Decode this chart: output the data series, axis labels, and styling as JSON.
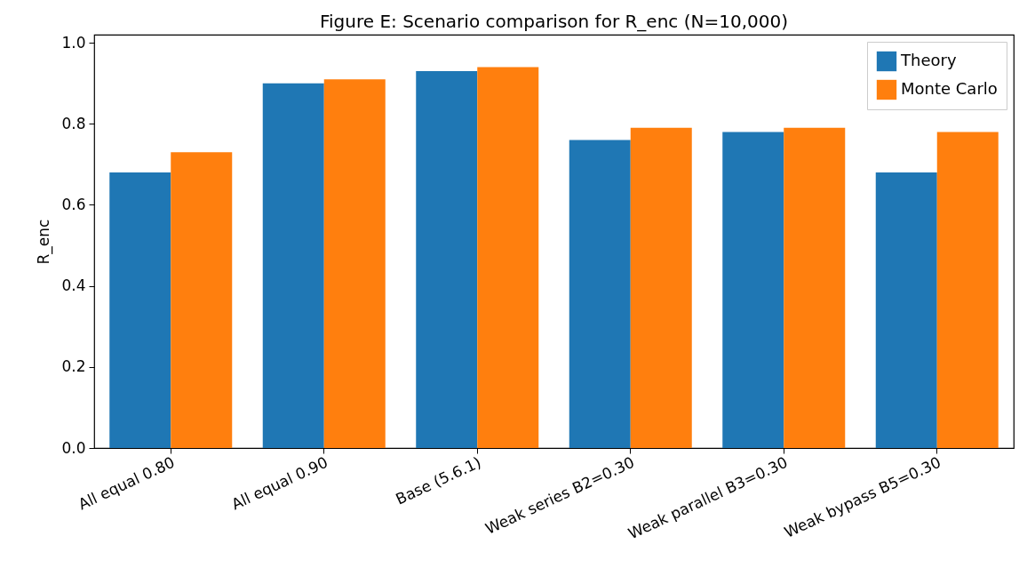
{
  "chart_data": {
    "type": "bar",
    "title": "Figure E: Scenario comparison for R_enc (N=10,000)",
    "ylabel": "R_enc",
    "categories": [
      "All equal 0.80",
      "All equal 0.90",
      "Base (5.6.1)",
      "Weak series B2=0.30",
      "Weak parallel B3=0.30",
      "Weak bypass B5=0.30"
    ],
    "series": [
      {
        "name": "Theory",
        "color": "#1f77b4",
        "values": [
          0.68,
          0.9,
          0.93,
          0.76,
          0.78,
          0.68
        ]
      },
      {
        "name": "Monte Carlo",
        "color": "#ff7f0e",
        "values": [
          0.73,
          0.91,
          0.94,
          0.79,
          0.79,
          0.78
        ]
      }
    ],
    "ylim": [
      0,
      1.02
    ],
    "yticks": [
      {
        "value": 0,
        "label": "0.0"
      },
      0.2,
      0.4,
      0.6,
      0.8,
      {
        "value": 1,
        "label": "1.0"
      }
    ],
    "grid": false,
    "legend": "top right"
  }
}
